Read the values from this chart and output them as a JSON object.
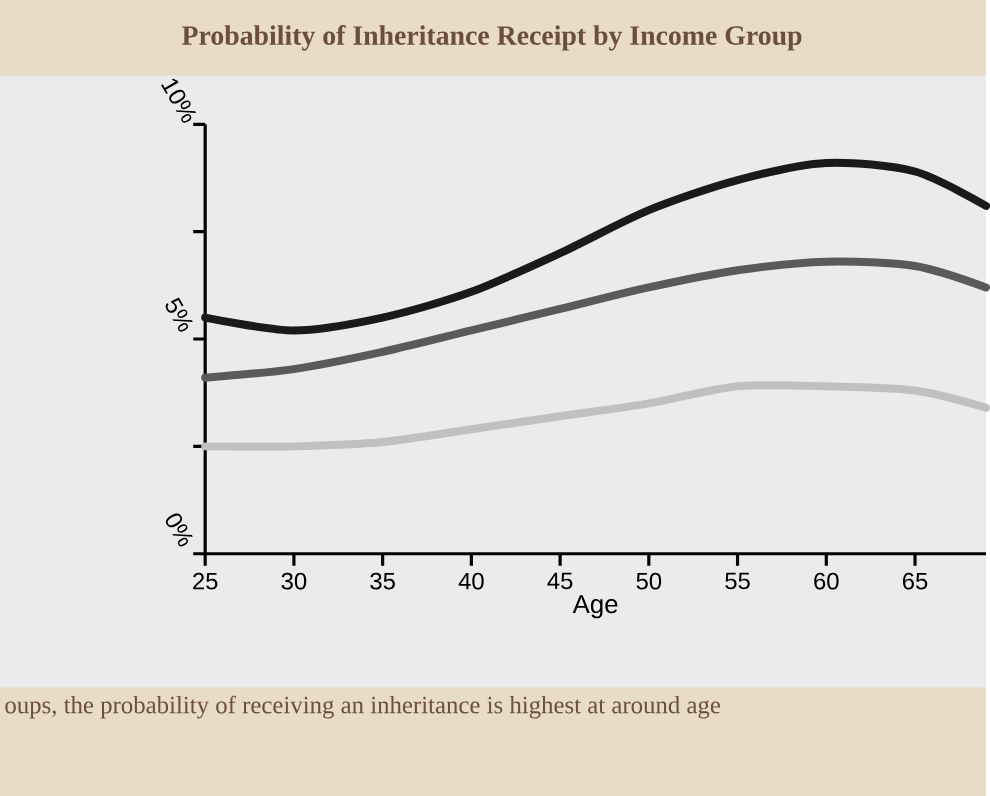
{
  "chart_data": {
    "type": "line",
    "title": "Probability of Inheritance Receipt by Income Group",
    "xlabel": "Age",
    "x": [
      25,
      30,
      35,
      40,
      45,
      50,
      55,
      60,
      65,
      69
    ],
    "series": [
      {
        "color": "#1a1a1a",
        "values": [
          5.5,
          5.2,
          5.5,
          6.1,
          7.0,
          8.0,
          8.7,
          9.1,
          8.9,
          8.1
        ]
      },
      {
        "color": "#5a5a5a",
        "values": [
          4.1,
          4.3,
          4.7,
          5.2,
          5.7,
          6.2,
          6.6,
          6.8,
          6.7,
          6.2
        ]
      },
      {
        "color": "#c0c0c0",
        "values": [
          2.5,
          2.5,
          2.6,
          2.9,
          3.2,
          3.5,
          3.9,
          3.9,
          3.8,
          3.4
        ]
      }
    ],
    "xlim": [
      25,
      69
    ],
    "xticks": [
      25,
      30,
      35,
      40,
      45,
      50,
      55,
      60,
      65
    ],
    "ylim": [
      0,
      10
    ],
    "yticks": [
      {
        "value": 0,
        "label": "0%"
      },
      {
        "value": 2.5,
        "label": null
      },
      {
        "value": 5,
        "label": "5%"
      },
      {
        "value": 7.5,
        "label": null
      },
      {
        "value": 10,
        "label": "10%"
      }
    ],
    "grid": false,
    "marker": "none",
    "line_style": "solid",
    "annotations": [
      "oups, the probability of receiving an inheritance is highest at around age"
    ]
  }
}
